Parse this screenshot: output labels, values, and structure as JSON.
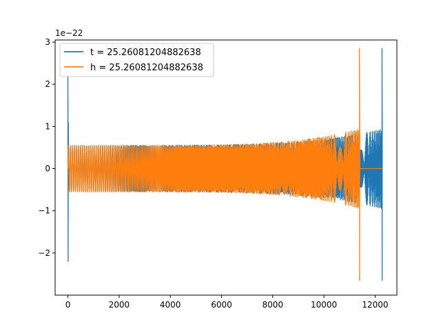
{
  "chart_data": {
    "type": "line",
    "title": "",
    "xlabel": "",
    "ylabel": "",
    "y_offset_label": "1e−22",
    "xlim": [
      -500,
      12850
    ],
    "ylim": [
      -3.0,
      3.05
    ],
    "x_ticks": [
      0,
      2000,
      4000,
      6000,
      8000,
      10000,
      12000
    ],
    "x_tick_labels": [
      "0",
      "2000",
      "4000",
      "6000",
      "8000",
      "10000",
      "12000"
    ],
    "y_ticks": [
      -2,
      -1,
      0,
      1,
      2,
      3
    ],
    "y_tick_labels": [
      "−2",
      "−1",
      "0",
      "1",
      "2",
      "3"
    ],
    "grid": false,
    "legend_position": "upper-left",
    "series": [
      {
        "name": "t = 25.26081204882638",
        "color": "#1f77b4",
        "start": 0,
        "merger": 12280,
        "end": 12280,
        "initial_spike": 2.2,
        "base_amplitude": 0.55,
        "pre_merger_amplitude": 0.95,
        "peak_amplitude_pos": 2.85,
        "peak_amplitude_neg": -2.65
      },
      {
        "name": "h = 25.26081204882638",
        "color": "#ff7f0e",
        "start": 0,
        "merger": 11400,
        "end": 12280,
        "initial_spike": 0.0,
        "base_amplitude": 0.55,
        "pre_merger_amplitude": 0.95,
        "peak_amplitude_pos": 2.85,
        "peak_amplitude_neg": -2.65
      }
    ]
  }
}
